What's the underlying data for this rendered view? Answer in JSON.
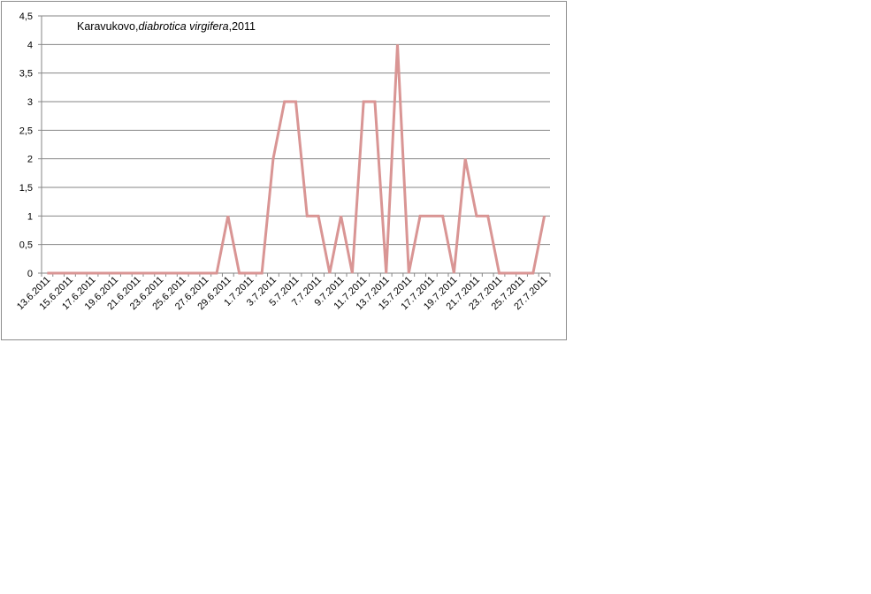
{
  "chart_data": {
    "type": "line",
    "title": "Karavukovo,",
    "title_italic": "diabrotica virgifera",
    "title_suffix": ",2011",
    "ylim": [
      0,
      4.5
    ],
    "y_ticks": [
      "0",
      "0,5",
      "1",
      "1,5",
      "2",
      "2,5",
      "3",
      "3,5",
      "4",
      "4,5"
    ],
    "x_tick_labels": [
      "13.6.2011",
      "15.6.2011",
      "17.6.2011",
      "19.6.2011",
      "21.6.2011",
      "23.6.2011",
      "25.6.2011",
      "27.6.2011",
      "29.6.2011",
      "1.7.2011",
      "3.7.2011",
      "5.7.2011",
      "7.7.2011",
      "9.7.2011",
      "11.7.2011",
      "13.7.2011",
      "15.7.2011",
      "17.7.2011",
      "19.7.2011",
      "21.7.2011",
      "23.7.2011",
      "25.7.2011",
      "27.7.2011"
    ],
    "grid": true,
    "line_color": "#d99594",
    "grid_color": "#868686",
    "series": [
      {
        "values": [
          0,
          0,
          0,
          0,
          0,
          0,
          0,
          0,
          0,
          0,
          0,
          0,
          0,
          0,
          0,
          0,
          1,
          0,
          0,
          0,
          2,
          3,
          3,
          1,
          1,
          0,
          1,
          0,
          3,
          3,
          0,
          4,
          0,
          1,
          1,
          1,
          0,
          2,
          1,
          1,
          0,
          0,
          0,
          0,
          1
        ]
      }
    ]
  }
}
